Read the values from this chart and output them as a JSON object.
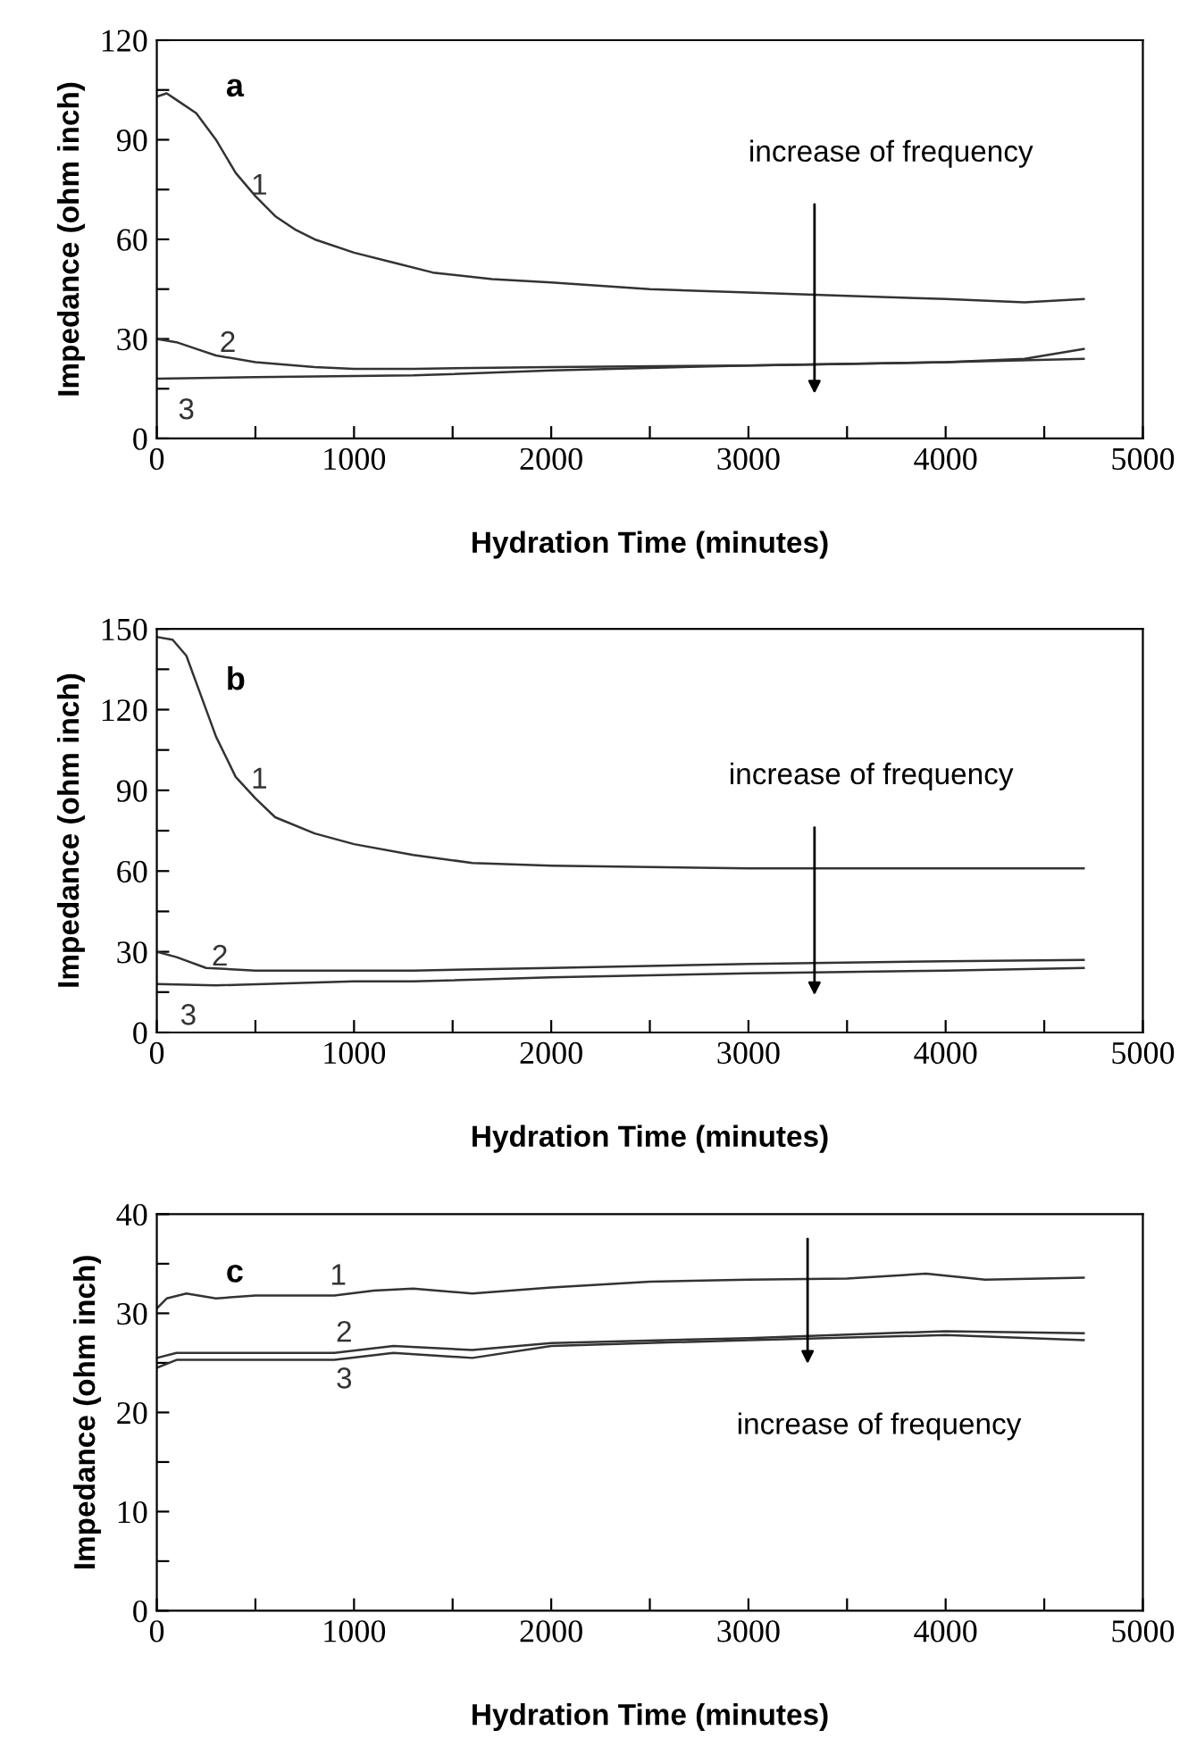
{
  "chart_data": [
    {
      "type": "line",
      "xlabel": "Hydration Time (minutes)",
      "ylabel": "Impedance (ohm inch)",
      "annotations": [
        "a",
        "increase of frequency"
      ],
      "xlim": [
        0,
        5000
      ],
      "ylim": [
        0,
        120
      ],
      "xticks": [
        0,
        {
          "value": 500,
          "label": null
        },
        1000,
        {
          "value": 1500,
          "label": null
        },
        2000,
        {
          "value": 2500,
          "label": null
        },
        3000,
        {
          "value": 3500,
          "label": null
        },
        4000,
        {
          "value": 4500,
          "label": null
        },
        5000
      ],
      "yticks": [
        0,
        {
          "value": 15,
          "label": null
        },
        30,
        {
          "value": 45,
          "label": null
        },
        60,
        {
          "value": 75,
          "label": null
        },
        90,
        {
          "value": 105,
          "label": null
        },
        120
      ],
      "grid": false,
      "legend": false,
      "series": [
        {
          "name": "1",
          "color": "#333333",
          "x": [
            0,
            50,
            100,
            200,
            300,
            400,
            500,
            600,
            700,
            800,
            1000,
            1200,
            1400,
            1700,
            2000,
            2500,
            3000,
            3500,
            4000,
            4400,
            4700
          ],
          "values": [
            103,
            104,
            102,
            98,
            90,
            80,
            73,
            67,
            63,
            60,
            56,
            53,
            50,
            48,
            47,
            45,
            44,
            43,
            42,
            41,
            42
          ]
        },
        {
          "name": "2",
          "color": "#333333",
          "x": [
            0,
            100,
            200,
            300,
            500,
            800,
            1000,
            1300,
            2000,
            3000,
            4000,
            4400,
            4700
          ],
          "values": [
            30,
            29,
            27,
            25,
            23,
            21.5,
            21,
            21,
            21.5,
            22,
            23,
            24,
            27
          ]
        },
        {
          "name": "3",
          "color": "#333333",
          "x": [
            0,
            500,
            1300,
            2000,
            3000,
            4000,
            4700
          ],
          "values": [
            18,
            18.5,
            19,
            20.5,
            22,
            23,
            24
          ]
        }
      ]
    },
    {
      "type": "line",
      "xlabel": "Hydration Time (minutes)",
      "ylabel": "Impedance (ohm inch)",
      "annotations": [
        "b",
        "increase of frequency"
      ],
      "xlim": [
        0,
        5000
      ],
      "ylim": [
        0,
        150
      ],
      "xticks": [
        0,
        {
          "value": 500,
          "label": null
        },
        1000,
        {
          "value": 1500,
          "label": null
        },
        2000,
        {
          "value": 2500,
          "label": null
        },
        3000,
        {
          "value": 3500,
          "label": null
        },
        4000,
        {
          "value": 4500,
          "label": null
        },
        5000
      ],
      "yticks": [
        0,
        {
          "value": 15,
          "label": null
        },
        30,
        {
          "value": 45,
          "label": null
        },
        60,
        {
          "value": 75,
          "label": null
        },
        90,
        {
          "value": 105,
          "label": null
        },
        120,
        {
          "value": 135,
          "label": null
        },
        150
      ],
      "grid": false,
      "legend": false,
      "series": [
        {
          "name": "1",
          "color": "#333333",
          "x": [
            0,
            80,
            150,
            200,
            300,
            400,
            500,
            600,
            800,
            1000,
            1300,
            1600,
            2000,
            3000,
            4000,
            4700
          ],
          "values": [
            147,
            146,
            140,
            130,
            110,
            95,
            87,
            80,
            74,
            70,
            66,
            63,
            62,
            61,
            61,
            61
          ]
        },
        {
          "name": "2",
          "color": "#333333",
          "x": [
            0,
            100,
            250,
            500,
            1000,
            1300,
            2000,
            3000,
            4000,
            4700
          ],
          "values": [
            30,
            28,
            24,
            23,
            23,
            23,
            24,
            25.5,
            26.5,
            27
          ]
        },
        {
          "name": "3",
          "color": "#333333",
          "x": [
            0,
            300,
            1000,
            1300,
            2000,
            3000,
            4000,
            4700
          ],
          "values": [
            18,
            17.5,
            19,
            19,
            20.5,
            22,
            23,
            24
          ]
        }
      ]
    },
    {
      "type": "line",
      "xlabel": "Hydration Time (minutes)",
      "ylabel": "Impedance (ohm inch)",
      "annotations": [
        "c",
        "increase of frequency"
      ],
      "xlim": [
        0,
        5000
      ],
      "ylim": [
        0,
        40
      ],
      "xticks": [
        0,
        {
          "value": 500,
          "label": null
        },
        1000,
        {
          "value": 1500,
          "label": null
        },
        2000,
        {
          "value": 2500,
          "label": null
        },
        3000,
        {
          "value": 3500,
          "label": null
        },
        4000,
        {
          "value": 4500,
          "label": null
        },
        5000
      ],
      "yticks": [
        0,
        {
          "value": 5,
          "label": null
        },
        10,
        {
          "value": 15,
          "label": null
        },
        20,
        {
          "value": 25,
          "label": null
        },
        30,
        {
          "value": 35,
          "label": null
        },
        40
      ],
      "grid": false,
      "legend": false,
      "series": [
        {
          "name": "1",
          "color": "#333333",
          "x": [
            0,
            50,
            150,
            300,
            500,
            900,
            1100,
            1300,
            1600,
            2000,
            2500,
            3000,
            3500,
            3900,
            4200,
            4700
          ],
          "values": [
            30.5,
            31.5,
            32,
            31.5,
            31.8,
            31.8,
            32.3,
            32.5,
            32,
            32.6,
            33.2,
            33.4,
            33.5,
            34,
            33.4,
            33.6
          ]
        },
        {
          "name": "2",
          "color": "#333333",
          "x": [
            0,
            100,
            500,
            900,
            1200,
            1600,
            2000,
            3000,
            4000,
            4700
          ],
          "values": [
            25.5,
            26,
            26,
            26,
            26.7,
            26.3,
            27,
            27.5,
            28.2,
            28
          ]
        },
        {
          "name": "3",
          "color": "#333333",
          "x": [
            0,
            100,
            500,
            900,
            1200,
            1600,
            2000,
            3000,
            4000,
            4700
          ],
          "values": [
            24.5,
            25.3,
            25.3,
            25.3,
            26,
            25.5,
            26.7,
            27.3,
            27.8,
            27.3
          ]
        }
      ]
    }
  ]
}
